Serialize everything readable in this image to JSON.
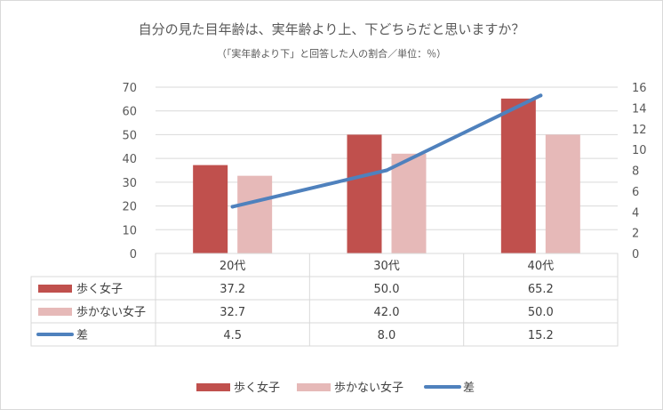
{
  "chart_data": {
    "type": "bar",
    "title": "自分の見た目年齢は、実年齢より上、下どちらだと思いますか？",
    "subtitle": "（「実年齢より下」と回答した人の割合／単位：％）",
    "categories": [
      "20代",
      "30代",
      "40代"
    ],
    "series": [
      {
        "name": "歩く女子",
        "type": "bar",
        "axis": "left",
        "color": "#c0504d",
        "values": [
          37.2,
          50.0,
          65.2
        ],
        "labels": [
          "37.2",
          "50.0",
          "65.2"
        ]
      },
      {
        "name": "歩かない女子",
        "type": "bar",
        "axis": "left",
        "color": "#e6b9b8",
        "values": [
          32.7,
          42.0,
          50.0
        ],
        "labels": [
          "32.7",
          "42.0",
          "50.0"
        ]
      },
      {
        "name": "差",
        "type": "line",
        "axis": "right",
        "color": "#4f81bd",
        "values": [
          4.5,
          8.0,
          15.2
        ],
        "labels": [
          "4.5",
          "8.0",
          "15.2"
        ]
      }
    ],
    "y_left": {
      "min": 0,
      "max": 70,
      "ticks": [
        "0",
        "10",
        "20",
        "30",
        "40",
        "50",
        "60",
        "70"
      ]
    },
    "y_right": {
      "min": 0,
      "max": 16,
      "ticks": [
        "0",
        "2",
        "4",
        "6",
        "8",
        "10",
        "12",
        "14",
        "16"
      ]
    },
    "grid": true,
    "legend_position": "bottom",
    "data_table": true
  }
}
